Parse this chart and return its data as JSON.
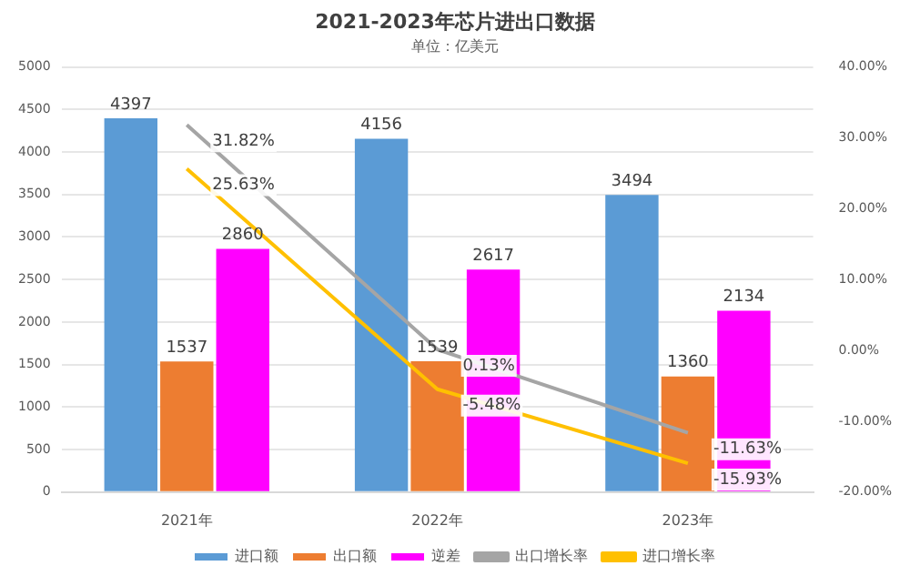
{
  "chart_data": {
    "type": "bar",
    "title": "2021-2023年芯片进出口数据",
    "subtitle": "单位：亿美元",
    "categories": [
      "2021年",
      "2022年",
      "2023年"
    ],
    "series": [
      {
        "name": "进口额",
        "color": "#5b9bd5",
        "values": [
          4397,
          4156,
          3494
        ],
        "value_labels": [
          "4397",
          "4156",
          "3494"
        ]
      },
      {
        "name": "出口额",
        "color": "#ed7d31",
        "values": [
          1537,
          1539,
          1360
        ],
        "value_labels": [
          "1537",
          "1539",
          "1360"
        ]
      },
      {
        "name": "逆差",
        "color": "#ff00ff",
        "values": [
          2860,
          2617,
          2134
        ],
        "value_labels": [
          "2860",
          "2617",
          "2134"
        ]
      },
      {
        "name": "出口增长率",
        "type": "line",
        "axis": "y2",
        "color": "#a5a5a5",
        "values": [
          31.82,
          0.13,
          -11.63
        ],
        "value_labels": [
          "31.82%",
          "0.13%",
          "-11.63%"
        ]
      },
      {
        "name": "进口增长率",
        "type": "line",
        "axis": "y2",
        "color": "#ffc000",
        "values": [
          25.63,
          -5.48,
          -15.93
        ],
        "value_labels": [
          "25.63%",
          "-5.48%",
          "-15.93%"
        ]
      }
    ],
    "ylim": [
      0,
      5000
    ],
    "yticks": [
      0,
      500,
      1000,
      1500,
      2000,
      2500,
      3000,
      3500,
      4000,
      4500,
      5000
    ],
    "y2lim": [
      -20,
      40
    ],
    "y2ticks": [
      {
        "value": -20,
        "label": "-20.00%"
      },
      {
        "value": -10,
        "label": "-10.00%"
      },
      {
        "value": 0,
        "label": "0.00%"
      },
      {
        "value": 10,
        "label": "10.00%"
      },
      {
        "value": 20,
        "label": "20.00%"
      },
      {
        "value": 30,
        "label": "30.00%"
      },
      {
        "value": 40,
        "label": "40.00%"
      }
    ],
    "grid": "y",
    "legend": "bottom",
    "marker": "none",
    "line_style": "solid"
  }
}
